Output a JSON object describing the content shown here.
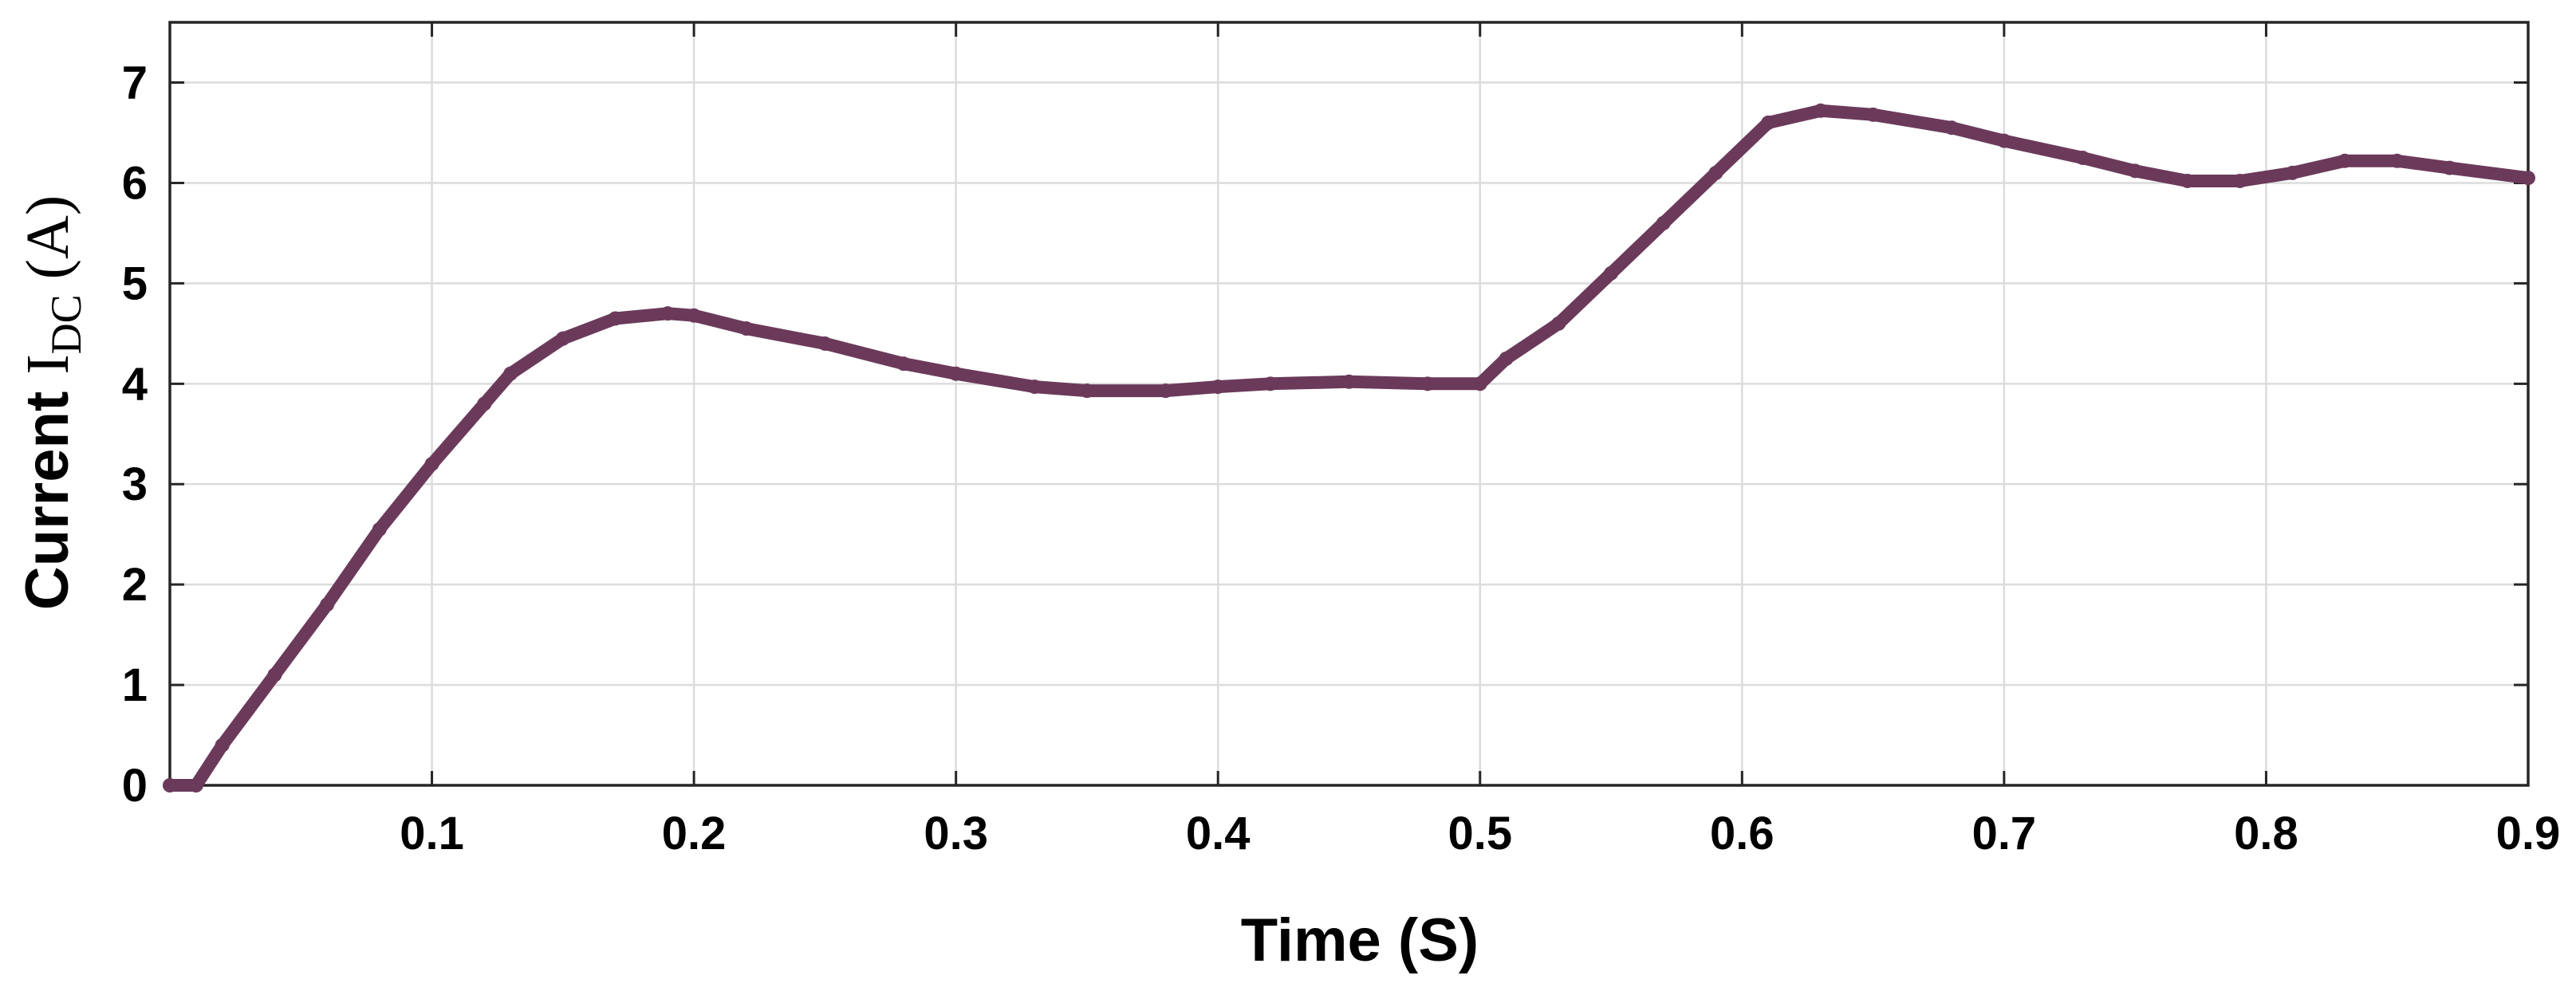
{
  "chart_data": {
    "type": "line",
    "xlabel": "Time (S)",
    "ylabel": {
      "prefix": "Current ",
      "symbol": "I",
      "subscript": "DC",
      "unit": " (A)"
    },
    "xlim": [
      0.0,
      0.9
    ],
    "ylim": [
      0,
      7.6
    ],
    "xticks": [
      0.1,
      0.2,
      0.3,
      0.4,
      0.5,
      0.6,
      0.7,
      0.8,
      0.9
    ],
    "xtick_labels": [
      "0.1",
      "0.2",
      "0.3",
      "0.4",
      "0.5",
      "0.6",
      "0.7",
      "0.8",
      "0.9"
    ],
    "yticks": [
      0,
      1,
      2,
      3,
      4,
      5,
      6,
      7
    ],
    "ytick_labels": [
      "0",
      "1",
      "2",
      "3",
      "4",
      "5",
      "6",
      "7"
    ],
    "grid": true,
    "series": [
      {
        "color": "#6b3a5b",
        "x": [
          0.0,
          0.01,
          0.02,
          0.04,
          0.06,
          0.08,
          0.1,
          0.12,
          0.13,
          0.15,
          0.17,
          0.19,
          0.2,
          0.22,
          0.25,
          0.28,
          0.3,
          0.33,
          0.35,
          0.38,
          0.4,
          0.42,
          0.45,
          0.48,
          0.5,
          0.51,
          0.53,
          0.55,
          0.57,
          0.59,
          0.61,
          0.63,
          0.65,
          0.68,
          0.7,
          0.73,
          0.75,
          0.77,
          0.79,
          0.81,
          0.83,
          0.85,
          0.87,
          0.9
        ],
        "y": [
          0.0,
          0.0,
          0.4,
          1.1,
          1.8,
          2.55,
          3.2,
          3.8,
          4.1,
          4.45,
          4.65,
          4.7,
          4.68,
          4.55,
          4.4,
          4.2,
          4.1,
          3.97,
          3.93,
          3.93,
          3.97,
          4.0,
          4.02,
          4.0,
          4.0,
          4.25,
          4.6,
          5.1,
          5.6,
          6.1,
          6.6,
          6.72,
          6.68,
          6.55,
          6.42,
          6.25,
          6.12,
          6.02,
          6.02,
          6.1,
          6.22,
          6.22,
          6.15,
          6.05
        ]
      }
    ]
  }
}
